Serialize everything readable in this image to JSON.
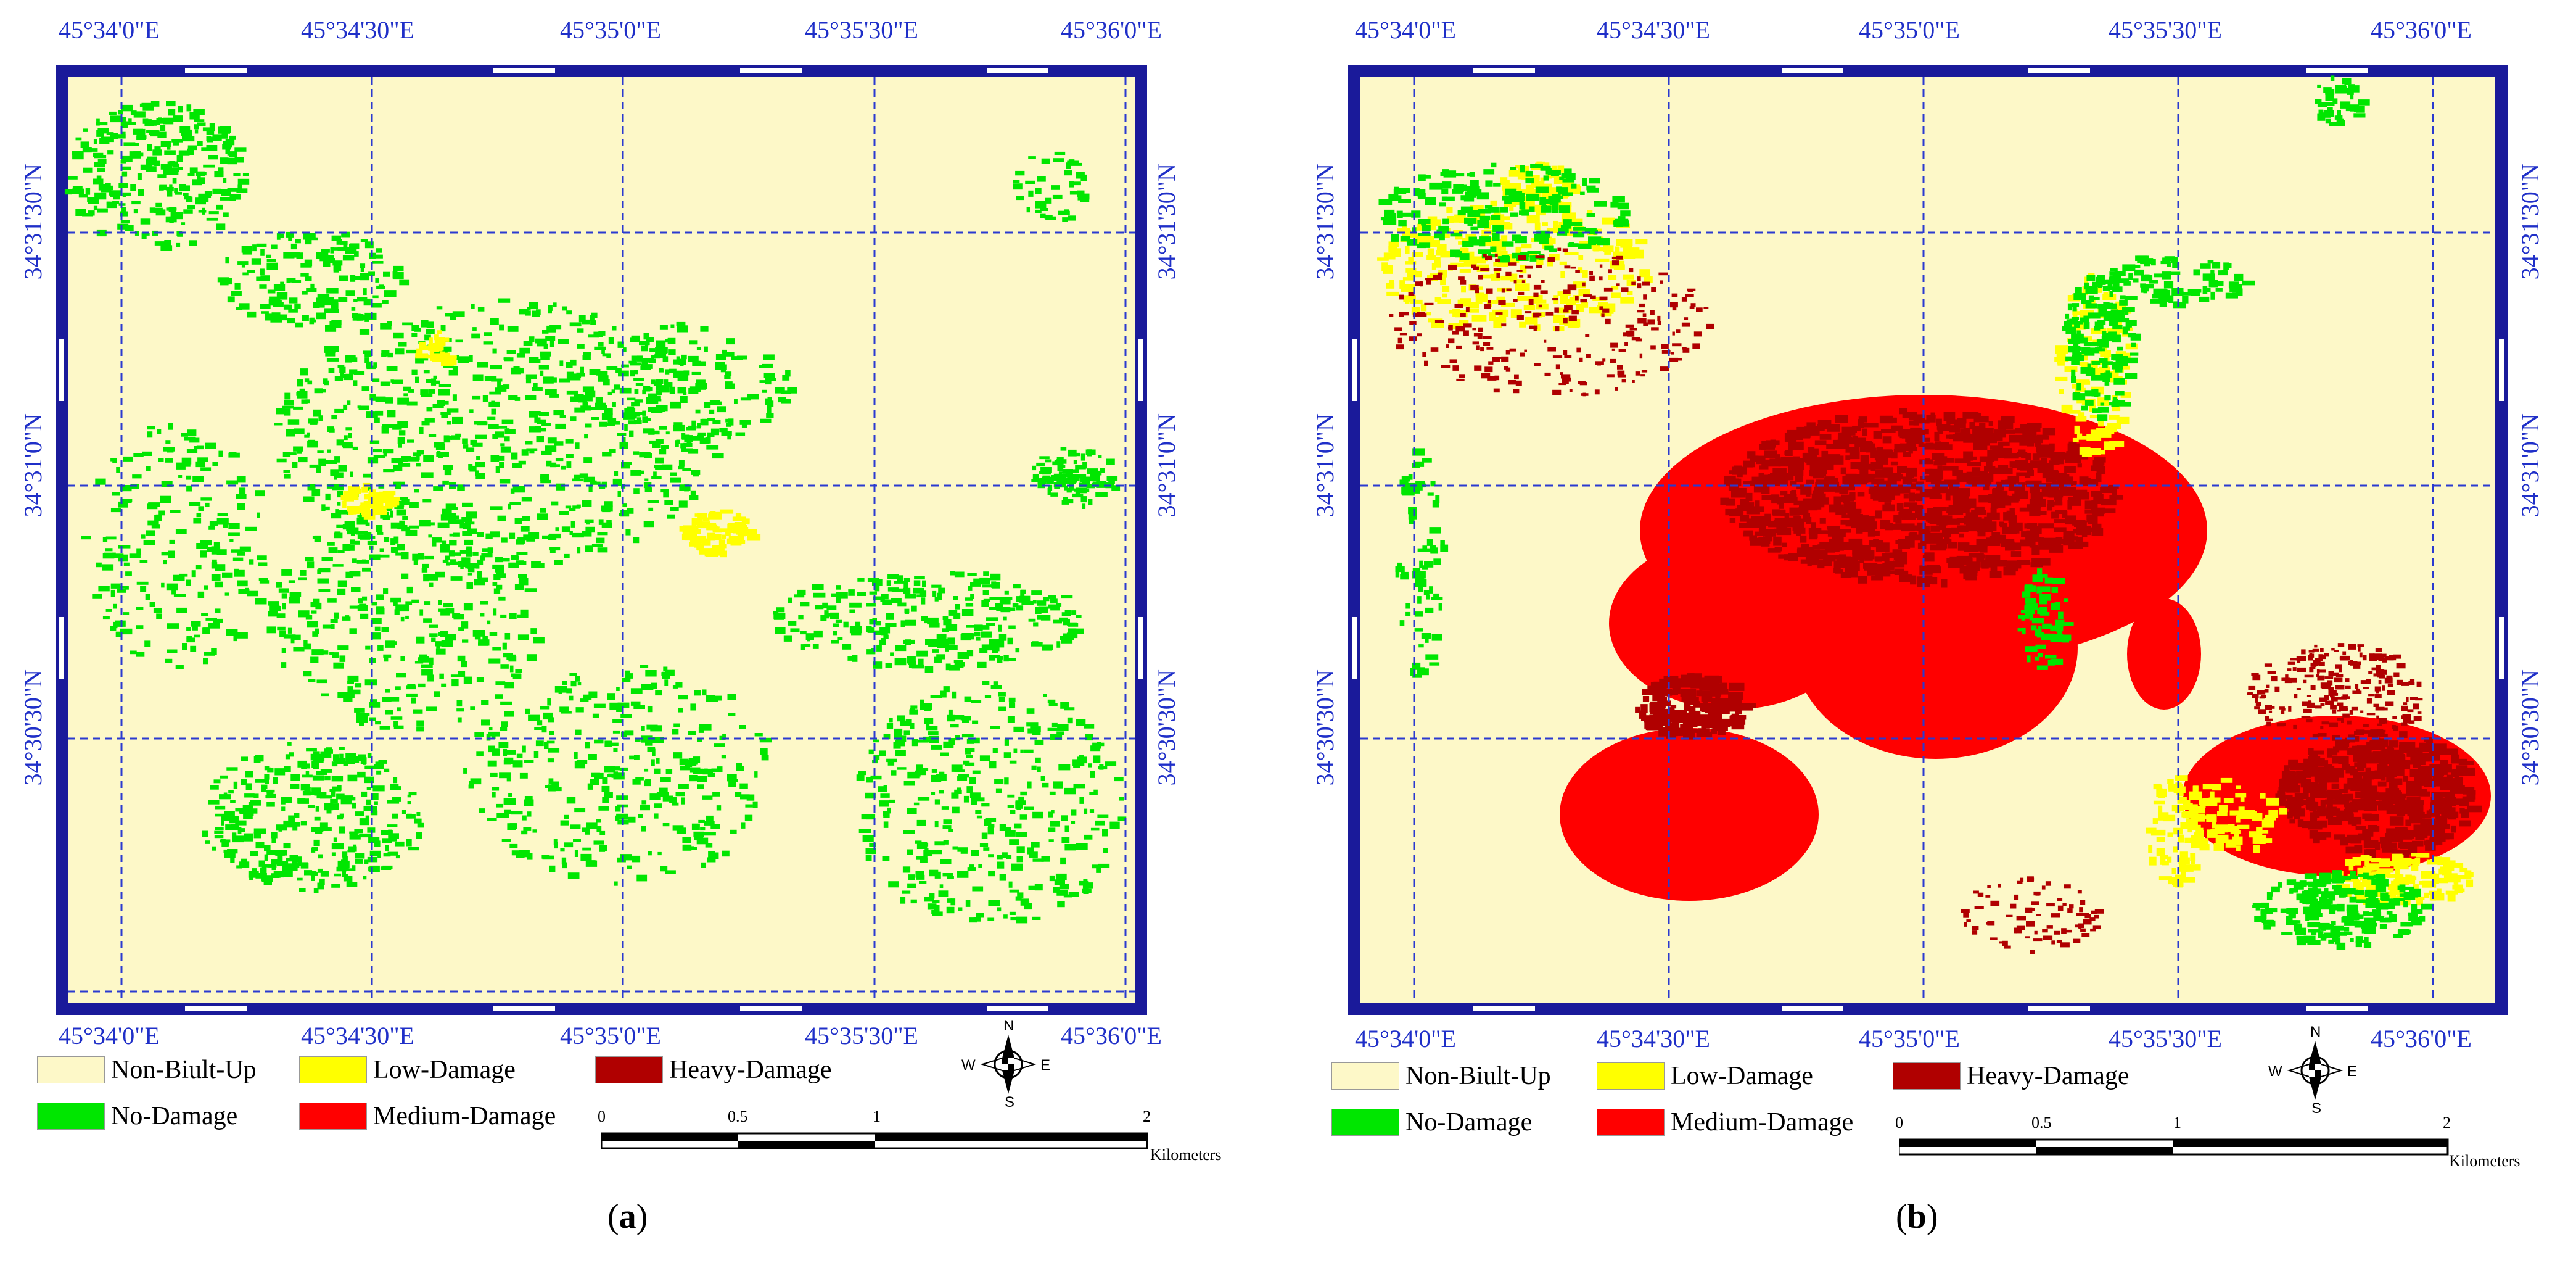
{
  "figure": {
    "panels": [
      {
        "id": "a",
        "caption_letter": "a",
        "lon_labels": [
          "45°34'0\"E",
          "45°34'30\"E",
          "45°35'0\"E",
          "45°35'30\"E",
          "45°36'0\"E"
        ],
        "lat_labels": [
          "34°31'30\"N",
          "34°31'0\"N",
          "34°30'30\"N"
        ],
        "dominant_class": "No-Damage"
      },
      {
        "id": "b",
        "caption_letter": "b",
        "lon_labels": [
          "45°34'0\"E",
          "45°34'30\"E",
          "45°35'0\"E",
          "45°35'30\"E",
          "45°36'0\"E"
        ],
        "lat_labels": [
          "34°31'30\"N",
          "34°31'0\"N",
          "34°30'30\"N"
        ],
        "dominant_class": "Medium-Damage"
      }
    ],
    "legend": [
      {
        "label": "Non-Biult-Up",
        "color": "#fdf8c8"
      },
      {
        "label": "Low-Damage",
        "color": "#ffff00"
      },
      {
        "label": "Heavy-Damage",
        "color": "#b00000"
      },
      {
        "label": "No-Damage",
        "color": "#00e600"
      },
      {
        "label": "Medium-Damage",
        "color": "#ff0000"
      }
    ],
    "scale_bar": {
      "ticks": [
        "0",
        "0.5",
        "1",
        "2"
      ],
      "units": "Kilometers"
    },
    "north_arrow": {
      "n": "N",
      "s": "S",
      "e": "E",
      "w": "W"
    },
    "colors": {
      "frame": "#1a1a9a",
      "grid": "#2a3ad0",
      "background": "#fdf8c8",
      "label": "#1f2fc8"
    }
  }
}
